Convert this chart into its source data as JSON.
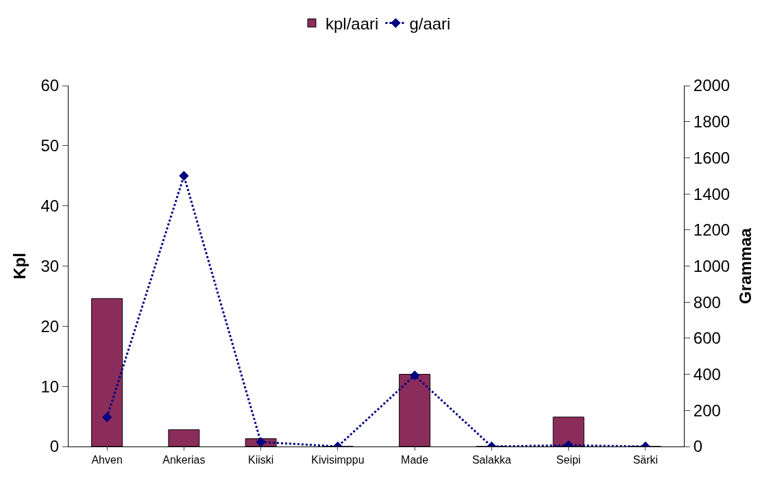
{
  "chart_data": {
    "type": "bar",
    "ylabel": "Kpl",
    "y2label": "Grammaa",
    "categories": [
      "Ahven",
      "Ankerias",
      "Kiiski",
      "Kivisimppu",
      "Made",
      "Salakka",
      "Seipi",
      "Särki"
    ],
    "series": [
      {
        "name": "kpl/aari",
        "color": "#8b2d5a",
        "values": [
          24.6,
          2.8,
          1.3,
          0,
          12.0,
          0,
          4.9,
          0
        ]
      },
      {
        "name": "g/aari",
        "type": "line",
        "axis": "y2",
        "color": "#000080",
        "marker": "diamond",
        "line_style": "dotted",
        "values": [
          162,
          1500,
          25,
          0,
          394,
          0,
          7,
          0
        ]
      }
    ],
    "ylim": [
      0,
      60
    ],
    "yticks": [
      0,
      10,
      20,
      30,
      40,
      50,
      60
    ],
    "y2lim": [
      0,
      2000
    ],
    "y2ticks": [
      0,
      200,
      400,
      600,
      800,
      1000,
      1200,
      1400,
      1600,
      1800,
      2000
    ],
    "legend": "top"
  }
}
